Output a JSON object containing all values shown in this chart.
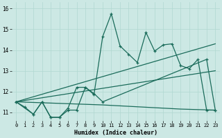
{
  "xlabel": "Humidex (Indice chaleur)",
  "bg_color": "#cce8e4",
  "grid_color": "#b0d8d0",
  "line_color": "#1a6b5a",
  "xlim": [
    -0.5,
    23.5
  ],
  "ylim": [
    10.6,
    16.3
  ],
  "xticks": [
    0,
    1,
    2,
    3,
    4,
    5,
    6,
    7,
    8,
    9,
    10,
    11,
    12,
    13,
    14,
    15,
    16,
    17,
    18,
    19,
    20,
    21,
    22,
    23
  ],
  "yticks": [
    11,
    12,
    13,
    14,
    15,
    16
  ],
  "line_jagged": {
    "x": [
      0,
      1,
      2,
      3,
      4,
      5,
      6,
      7,
      8,
      9,
      10,
      11,
      12,
      13,
      14,
      15,
      16,
      17,
      18,
      19,
      20,
      21,
      22,
      23
    ],
    "y": [
      11.5,
      11.25,
      10.9,
      11.5,
      10.75,
      10.75,
      11.1,
      11.1,
      12.2,
      11.85,
      14.65,
      15.75,
      14.2,
      13.8,
      13.4,
      14.85,
      13.95,
      14.25,
      14.3,
      13.25,
      13.1,
      13.55,
      11.1,
      11.1
    ]
  },
  "line_trend_high": {
    "x": [
      0,
      23
    ],
    "y": [
      11.5,
      14.3
    ]
  },
  "line_trend_low": {
    "x": [
      0,
      23
    ],
    "y": [
      11.5,
      13.0
    ]
  },
  "line_flat": {
    "x": [
      0,
      10,
      19,
      23
    ],
    "y": [
      11.5,
      11.35,
      11.15,
      11.1
    ]
  },
  "line_secondary": {
    "x": [
      0,
      2,
      3,
      4,
      5,
      6,
      7,
      8,
      9,
      10,
      22,
      23
    ],
    "y": [
      11.5,
      10.9,
      11.5,
      10.75,
      10.75,
      11.2,
      12.2,
      12.2,
      11.9,
      11.5,
      13.55,
      11.1
    ]
  }
}
